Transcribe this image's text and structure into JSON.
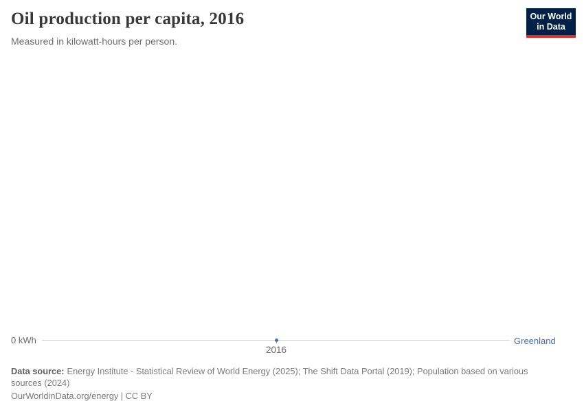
{
  "header": {
    "title": "Oil production per capita, 2016",
    "subtitle": "Measured in kilowatt-hours per person.",
    "logo": {
      "line1": "Our World",
      "line2": "in Data"
    }
  },
  "chart_data": {
    "type": "line",
    "title": "Oil production per capita, 2016",
    "subtitle": "Measured in kilowatt-hours per person.",
    "x": [
      2016
    ],
    "series": [
      {
        "name": "Greenland",
        "values": [
          0
        ],
        "color": "#4a6aa8"
      }
    ],
    "unit": "kWh",
    "xlabel": "",
    "ylabel": "",
    "ylim": [
      0,
      0
    ],
    "y_tick_label": "0 kWh",
    "x_tick_label": "2016",
    "grid": false,
    "legend_position": "right-inline"
  },
  "footer": {
    "source_label": "Data source:",
    "source_text": "Energy Institute - Statistical Review of World Energy (2025); The Shift Data Portal (2019); Population based on various sources (2024)",
    "license_text": "OurWorldinData.org/energy | CC BY"
  },
  "colors": {
    "series": "#4a6aa8",
    "axis_line": "#cfcfcf",
    "tick_text": "#6b6b6b",
    "logo_background": "#002147",
    "logo_accent": "#dc2e22",
    "title_text": "#383838",
    "subtitle_text": "#6d6d6d",
    "footer_text": "#7a7a7a"
  }
}
